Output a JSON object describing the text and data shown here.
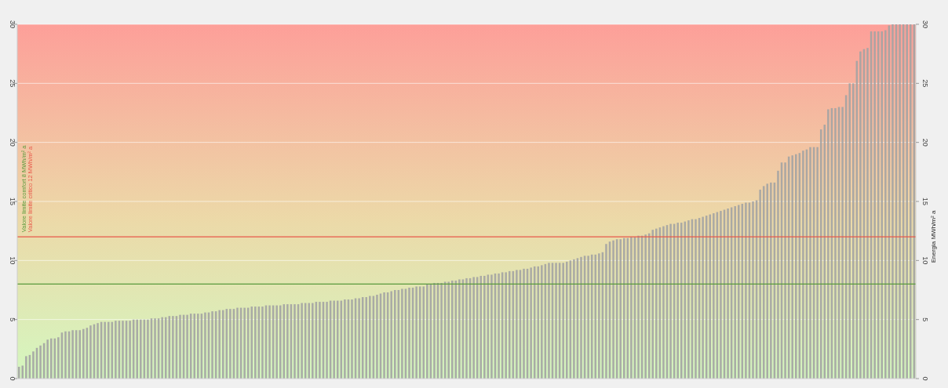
{
  "chart_data": {
    "type": "bar",
    "categories": [
      null,
      null,
      null,
      null,
      null,
      null,
      null,
      null,
      null,
      null,
      null,
      null,
      null,
      null,
      null,
      null,
      null,
      null,
      null,
      null,
      null,
      null,
      null,
      null,
      null,
      null,
      null,
      null,
      null,
      null,
      null,
      null,
      null,
      null,
      null,
      null,
      null,
      null,
      null,
      null,
      null,
      null,
      null,
      null,
      null,
      null,
      null,
      null,
      null,
      null,
      null,
      null,
      null,
      null,
      null,
      null,
      null,
      null,
      null,
      null,
      null,
      null,
      null,
      null,
      null,
      null,
      null,
      null,
      null,
      null,
      null,
      null,
      null,
      null,
      null,
      null,
      null,
      null,
      null,
      null,
      null,
      null,
      null,
      null,
      null,
      null,
      null,
      null,
      null,
      null,
      null,
      null,
      null,
      null,
      null,
      null,
      null,
      null,
      null,
      null,
      null,
      null,
      null,
      null,
      null,
      null,
      null,
      null,
      null,
      null,
      null,
      null,
      null,
      null,
      null,
      null,
      null,
      null,
      null,
      null,
      null,
      null,
      null,
      null,
      null,
      null,
      null,
      null,
      null,
      null,
      null,
      null,
      null,
      null,
      null,
      null,
      null,
      null,
      null,
      null,
      null,
      null,
      null,
      null,
      null,
      null,
      null,
      null,
      null,
      null,
      null,
      null,
      null,
      null,
      null,
      null,
      null,
      null,
      null,
      null,
      null,
      null,
      null,
      null,
      null,
      null,
      null,
      null,
      null,
      null,
      null,
      null,
      null,
      null,
      null,
      null,
      null,
      null,
      null,
      null,
      null,
      null,
      null,
      null,
      null,
      null,
      null,
      null,
      null,
      null,
      null,
      null,
      null,
      null,
      null,
      null,
      null,
      null,
      null,
      null,
      null,
      null,
      null,
      null,
      null,
      null,
      null,
      null,
      null,
      null,
      null,
      null,
      null,
      null,
      null,
      null,
      null,
      null,
      null,
      null,
      null,
      null,
      null,
      null,
      null,
      null,
      null,
      null,
      null,
      null,
      null,
      null,
      null,
      null,
      null,
      null,
      null,
      null,
      null,
      null,
      null,
      null,
      null,
      null,
      null,
      null,
      null,
      null,
      null,
      null,
      null
    ],
    "values": [
      1.0,
      1.1,
      1.9,
      2.0,
      2.3,
      2.6,
      2.8,
      3.0,
      3.3,
      3.4,
      3.4,
      3.5,
      3.9,
      4.0,
      4.0,
      4.1,
      4.1,
      4.1,
      4.2,
      4.3,
      4.5,
      4.6,
      4.7,
      4.8,
      4.8,
      4.8,
      4.8,
      4.9,
      4.9,
      4.9,
      4.9,
      4.9,
      5.0,
      5.0,
      5.0,
      5.0,
      5.0,
      5.1,
      5.1,
      5.1,
      5.2,
      5.2,
      5.3,
      5.3,
      5.3,
      5.4,
      5.4,
      5.4,
      5.5,
      5.5,
      5.5,
      5.5,
      5.6,
      5.6,
      5.7,
      5.7,
      5.8,
      5.8,
      5.9,
      5.9,
      5.9,
      6.0,
      6.0,
      6.0,
      6.0,
      6.1,
      6.1,
      6.1,
      6.1,
      6.2,
      6.2,
      6.2,
      6.2,
      6.2,
      6.3,
      6.3,
      6.3,
      6.3,
      6.3,
      6.4,
      6.4,
      6.4,
      6.4,
      6.5,
      6.5,
      6.5,
      6.5,
      6.6,
      6.6,
      6.6,
      6.6,
      6.7,
      6.7,
      6.7,
      6.8,
      6.8,
      6.9,
      6.9,
      7.0,
      7.0,
      7.1,
      7.2,
      7.3,
      7.3,
      7.4,
      7.5,
      7.5,
      7.6,
      7.6,
      7.7,
      7.7,
      7.8,
      7.8,
      7.8,
      8.0,
      8.0,
      8.1,
      8.1,
      8.1,
      8.2,
      8.2,
      8.3,
      8.3,
      8.4,
      8.4,
      8.5,
      8.5,
      8.6,
      8.6,
      8.7,
      8.7,
      8.8,
      8.8,
      8.9,
      8.9,
      9.0,
      9.0,
      9.1,
      9.1,
      9.2,
      9.2,
      9.3,
      9.3,
      9.4,
      9.5,
      9.5,
      9.6,
      9.7,
      9.8,
      9.8,
      9.8,
      9.8,
      9.8,
      9.9,
      10.0,
      10.1,
      10.2,
      10.3,
      10.4,
      10.4,
      10.5,
      10.5,
      10.6,
      10.7,
      11.4,
      11.6,
      11.7,
      11.8,
      11.8,
      11.9,
      11.9,
      12.0,
      12.0,
      12.1,
      12.1,
      12.2,
      12.3,
      12.6,
      12.7,
      12.8,
      12.9,
      13.0,
      13.1,
      13.1,
      13.2,
      13.2,
      13.3,
      13.4,
      13.5,
      13.5,
      13.6,
      13.7,
      13.8,
      13.9,
      14.0,
      14.1,
      14.2,
      14.3,
      14.4,
      14.5,
      14.6,
      14.7,
      14.8,
      14.9,
      14.9,
      15.0,
      15.1,
      16.0,
      16.3,
      16.5,
      16.6,
      16.6,
      17.6,
      18.3,
      18.3,
      18.8,
      18.9,
      19.0,
      19.1,
      19.3,
      19.4,
      19.6,
      19.6,
      19.6,
      21.1,
      21.5,
      22.8,
      22.9,
      22.9,
      23.0,
      23.0,
      24.0,
      25.0,
      25.0,
      26.9,
      27.7,
      27.9,
      28.0,
      29.4,
      29.4,
      29.4,
      29.4,
      29.5,
      29.9,
      30,
      30,
      30,
      30,
      30,
      30,
      30
    ],
    "color": "#a3a3a3",
    "ylim": [
      0,
      30
    ],
    "yticks": [
      0,
      5,
      10,
      15,
      20,
      25,
      30
    ],
    "y2lim": [
      0,
      30
    ],
    "y2ticks": [
      0,
      5,
      10,
      15,
      20,
      25,
      30
    ],
    "y2label": "Energia MWh/m² a",
    "grid": "y",
    "ref_lines": [
      {
        "axis": "y",
        "value": 8,
        "label": "Valore limite comfort 8 MWh/m² a",
        "color": "#5a9a3c"
      },
      {
        "axis": "y",
        "value": 12,
        "label": "Valore limite critico 12 MWh/m² a",
        "color": "#e8584a"
      }
    ]
  }
}
